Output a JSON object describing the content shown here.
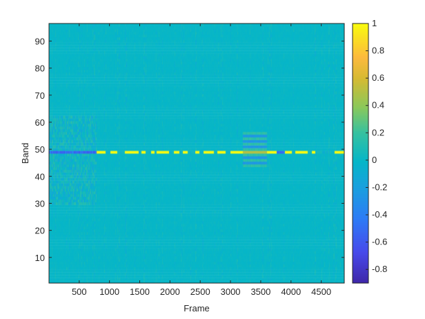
{
  "chart_data": {
    "type": "heatmap",
    "xlabel": "Frame",
    "ylabel": "Band",
    "xlim": [
      0.5,
      4880.5
    ],
    "ylim": [
      0.5,
      96.5
    ],
    "x_ticks": [
      500,
      1000,
      1500,
      2000,
      2500,
      3000,
      3500,
      4000,
      4500
    ],
    "y_ticks": [
      10,
      20,
      30,
      40,
      50,
      60,
      70,
      80,
      90
    ],
    "colorbar": {
      "clim": [
        -0.9,
        1
      ],
      "ticks": [
        "1",
        "0.8",
        "0.6",
        "0.4",
        "0.2",
        "0",
        "-0.2",
        "-0.4",
        "-0.6",
        "-0.8"
      ],
      "tick_values": [
        1,
        0.8,
        0.6,
        0.4,
        0.2,
        0,
        -0.2,
        -0.4,
        -0.6,
        -0.8
      ],
      "colormap": "parula"
    },
    "n_frames": 4880,
    "n_bands": 96,
    "background_value": 0,
    "dominant_band": 49,
    "dominant_band_value": 1,
    "dominant_band_negative_frames": [
      [
        1,
        790
      ],
      [
        3760,
        3900
      ]
    ],
    "dominant_band_gaps_frames": [
      [
        940,
        1020
      ],
      [
        1130,
        1260
      ],
      [
        1480,
        1530
      ],
      [
        1600,
        1690
      ],
      [
        1740,
        1780
      ],
      [
        1990,
        2060
      ],
      [
        2150,
        2210
      ],
      [
        2290,
        2420
      ],
      [
        2490,
        2560
      ],
      [
        2720,
        2780
      ],
      [
        2920,
        3000
      ],
      [
        3200,
        3600
      ],
      [
        4010,
        4070
      ],
      [
        4280,
        4340
      ],
      [
        4400,
        4720
      ]
    ],
    "active_regions": [
      {
        "frames": [
          1,
          790
        ],
        "bands": [
          30,
          62
        ],
        "amplitude": 0.15
      },
      {
        "frames": [
          3200,
          3600
        ],
        "bands": [
          44,
          56
        ],
        "amplitude": 0.3
      }
    ]
  }
}
